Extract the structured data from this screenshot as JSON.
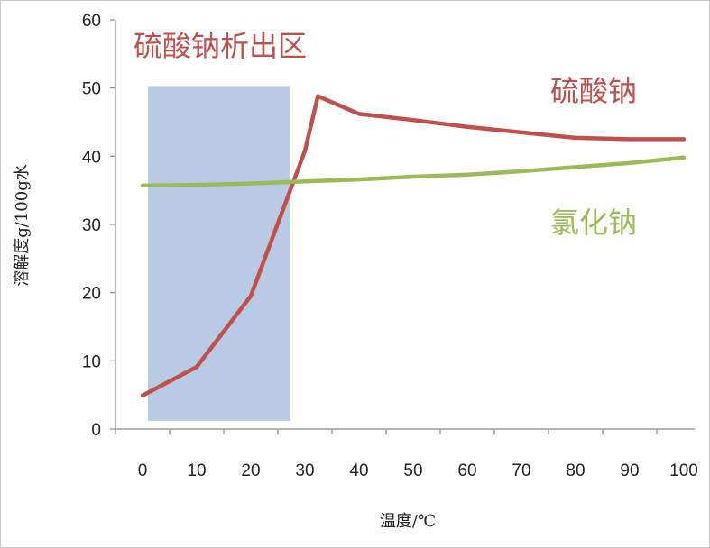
{
  "chart_data": {
    "type": "line",
    "title": "",
    "xlabel": "温度/℃",
    "ylabel": "溶解度g/100g水",
    "xlim": [
      0,
      100
    ],
    "ylim": [
      0,
      60
    ],
    "x_ticks": [
      0,
      10,
      20,
      30,
      40,
      50,
      60,
      70,
      80,
      90,
      100
    ],
    "y_ticks": [
      0,
      10,
      20,
      30,
      40,
      50,
      60
    ],
    "grid": false,
    "legend": "none",
    "series": [
      {
        "name": "硫酸钠",
        "color": "#c0504d",
        "x": [
          0,
          10,
          20,
          30,
          32.4,
          40,
          50,
          60,
          70,
          80,
          90,
          100
        ],
        "y": [
          4.9,
          9.1,
          19.5,
          40.8,
          48.8,
          46.2,
          45.3,
          44.3,
          43.5,
          42.7,
          42.5,
          42.5
        ]
      },
      {
        "name": "氯化钠",
        "color": "#9bbb59",
        "x": [
          0,
          10,
          20,
          30,
          40,
          50,
          60,
          70,
          80,
          90,
          100
        ],
        "y": [
          35.7,
          35.8,
          36.0,
          36.3,
          36.6,
          37.0,
          37.3,
          37.8,
          38.4,
          39.0,
          39.8
        ]
      }
    ],
    "region": {
      "label": "硫酸钠析出区",
      "x_range": [
        0,
        27.3
      ],
      "y_range": [
        1.2,
        50.3
      ],
      "color": "#b9cbe4"
    },
    "annotations": [
      {
        "text": "硫酸钠",
        "color": "#c0504d"
      },
      {
        "text": "氯化钠",
        "color": "#9bbb59"
      }
    ]
  }
}
